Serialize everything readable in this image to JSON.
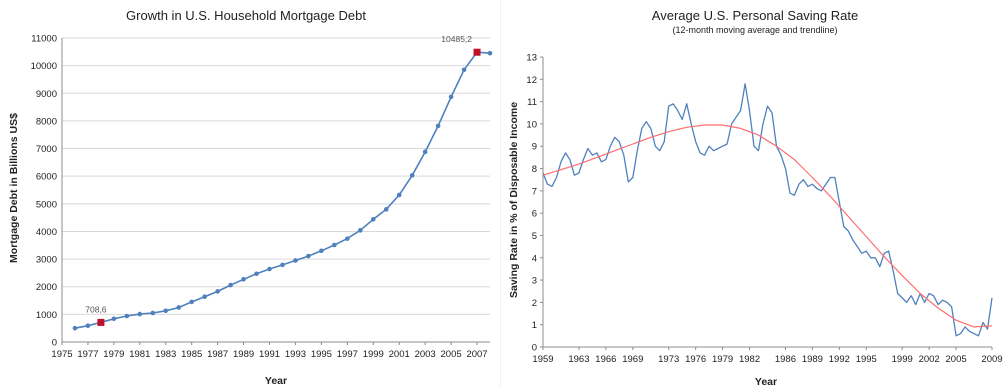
{
  "chart_data": [
    {
      "type": "line",
      "title": "Growth in U.S. Household Mortgage Debt",
      "xlabel": "Year",
      "ylabel": "Mortgage Debt in Billions US$",
      "ylim": [
        0,
        11000
      ],
      "yticks": [
        0,
        1000,
        2000,
        3000,
        4000,
        5000,
        6000,
        7000,
        8000,
        9000,
        10000,
        11000
      ],
      "xlim": [
        1975,
        2008
      ],
      "xtick_labels": [
        "1975",
        "1977",
        "1979",
        "1981",
        "1983",
        "1985",
        "1987",
        "1989",
        "1991",
        "1993",
        "1995",
        "1997",
        "1999",
        "2001",
        "2003",
        "2005",
        "2007"
      ],
      "grid": true,
      "series": [
        {
          "color": "#4f81bd",
          "x": [
            1976,
            1977,
            1978,
            1979,
            1980,
            1981,
            1982,
            1983,
            1984,
            1985,
            1986,
            1987,
            1988,
            1989,
            1990,
            1991,
            1992,
            1993,
            1994,
            1995,
            1996,
            1997,
            1998,
            1999,
            2000,
            2001,
            2002,
            2003,
            2004,
            2005,
            2006,
            2007,
            2008
          ],
          "y": [
            500,
            590,
            708.6,
            840,
            940,
            1010,
            1050,
            1130,
            1250,
            1450,
            1640,
            1830,
            2060,
            2270,
            2470,
            2640,
            2790,
            2950,
            3110,
            3300,
            3510,
            3740,
            4040,
            4440,
            4800,
            5320,
            6030,
            6880,
            7820,
            8870,
            9850,
            10485.2,
            10450
          ]
        }
      ],
      "annotations": [
        {
          "x": 1978,
          "y": 708.6,
          "label": "708,6",
          "color": "#c0102a"
        },
        {
          "x": 2007,
          "y": 10485.2,
          "label": "10485,2",
          "color": "#c0102a"
        }
      ]
    },
    {
      "type": "line",
      "title": "Average U.S. Personal Saving Rate",
      "subtitle": "(12-month moving average and trendline)",
      "xlabel": "Year",
      "ylabel": "Saving Rate in % of Disposable Income",
      "ylim": [
        0,
        13
      ],
      "yticks": [
        0,
        1,
        2,
        3,
        4,
        5,
        6,
        7,
        8,
        9,
        10,
        11,
        12,
        13
      ],
      "xlim": [
        1959,
        2009
      ],
      "xticks": [
        1959,
        1963,
        1966,
        1969,
        1973,
        1976,
        1979,
        1982,
        1986,
        1989,
        1992,
        1995,
        1999,
        2002,
        2005,
        2009
      ],
      "grid": false,
      "series": [
        {
          "color": "#4f81bd",
          "x": [
            1959,
            1959.5,
            1960,
            1960.5,
            1961,
            1961.5,
            1962,
            1962.5,
            1963,
            1963.5,
            1964,
            1964.5,
            1965,
            1965.5,
            1966,
            1966.5,
            1967,
            1967.5,
            1968,
            1968.5,
            1969,
            1969.5,
            1970,
            1970.5,
            1971,
            1971.5,
            1972,
            1972.5,
            1973,
            1973.5,
            1974,
            1974.5,
            1975,
            1975.5,
            1976,
            1976.5,
            1977,
            1977.5,
            1978,
            1978.5,
            1979,
            1979.5,
            1980,
            1980.5,
            1981,
            1981.5,
            1982,
            1982.5,
            1983,
            1983.5,
            1984,
            1984.5,
            1985,
            1985.5,
            1986,
            1986.5,
            1987,
            1987.5,
            1988,
            1988.5,
            1989,
            1989.5,
            1990,
            1990.5,
            1991,
            1991.5,
            1992,
            1992.5,
            1993,
            1993.5,
            1994,
            1994.5,
            1995,
            1995.5,
            1996,
            1996.5,
            1997,
            1997.5,
            1998,
            1998.5,
            1999,
            1999.5,
            2000,
            2000.5,
            2001,
            2001.5,
            2002,
            2002.5,
            2003,
            2003.5,
            2004,
            2004.5,
            2005,
            2005.5,
            2006,
            2006.5,
            2007,
            2007.5,
            2008,
            2008.5,
            2009
          ],
          "y": [
            7.8,
            7.3,
            7.2,
            7.6,
            8.3,
            8.7,
            8.4,
            7.7,
            7.8,
            8.4,
            8.9,
            8.6,
            8.7,
            8.3,
            8.4,
            9.0,
            9.4,
            9.2,
            8.6,
            7.4,
            7.6,
            8.8,
            9.8,
            10.1,
            9.8,
            9.0,
            8.8,
            9.2,
            10.8,
            10.9,
            10.6,
            10.2,
            10.9,
            10.0,
            9.2,
            8.7,
            8.6,
            9.0,
            8.8,
            8.9,
            9.0,
            9.1,
            10.0,
            10.3,
            10.6,
            11.8,
            10.6,
            9.0,
            8.8,
            10.0,
            10.8,
            10.5,
            9.0,
            8.6,
            8.0,
            6.9,
            6.8,
            7.3,
            7.5,
            7.2,
            7.3,
            7.1,
            7.0,
            7.3,
            7.6,
            7.6,
            6.5,
            5.4,
            5.2,
            4.8,
            4.5,
            4.2,
            4.3,
            4.0,
            4.0,
            3.6,
            4.2,
            4.3,
            3.4,
            2.4,
            2.2,
            2.0,
            2.3,
            1.9,
            2.4,
            2.0,
            2.4,
            2.3,
            1.9,
            2.1,
            2.0,
            1.8,
            0.5,
            0.6,
            0.9,
            0.7,
            0.6,
            0.5,
            1.1,
            0.8,
            2.2
          ]
        },
        {
          "color": "#ff6e6e",
          "x": [
            1959,
            1961,
            1963,
            1965,
            1967,
            1969,
            1971,
            1973,
            1975,
            1977,
            1979,
            1981,
            1983,
            1985,
            1987,
            1989,
            1991,
            1993,
            1995,
            1997,
            1999,
            2001,
            2003,
            2005,
            2007,
            2009
          ],
          "y": [
            7.7,
            7.95,
            8.2,
            8.5,
            8.8,
            9.1,
            9.4,
            9.65,
            9.85,
            9.95,
            9.95,
            9.8,
            9.5,
            9.0,
            8.4,
            7.6,
            6.75,
            5.85,
            4.95,
            4.05,
            3.2,
            2.4,
            1.75,
            1.2,
            0.9,
            0.95
          ]
        }
      ]
    }
  ]
}
